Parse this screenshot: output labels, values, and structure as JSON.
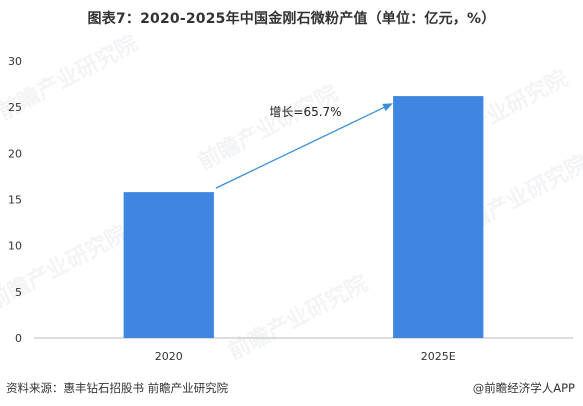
{
  "title": "图表7：2020-2025年中国金刚石微粉产值（单位：亿元，%）",
  "source_label": "资料来源：惠丰钻石招股书  前瞻产业研究院",
  "credit": "@前瞻经济学人APP",
  "watermark_text": "前瞻产业研究院",
  "colors": {
    "bar": "#3f86e0",
    "arrow": "#3b8fd6",
    "axis": "#bbbbbb",
    "text": "#333333"
  },
  "chart_data": {
    "type": "bar",
    "title": "图表7：2020-2025年中国金刚石微粉产值（单位：亿元，%）",
    "categories": [
      "2020",
      "2025E"
    ],
    "values": [
      15.8,
      26.2
    ],
    "ylim": [
      0,
      30
    ],
    "yticks": [
      "0",
      "5",
      "10",
      "15",
      "20",
      "25",
      "30"
    ],
    "xlabel": "",
    "ylabel": "",
    "grid": false,
    "annotation": {
      "text": "增长=65.7%",
      "from": "2020",
      "to": "2025E"
    }
  }
}
